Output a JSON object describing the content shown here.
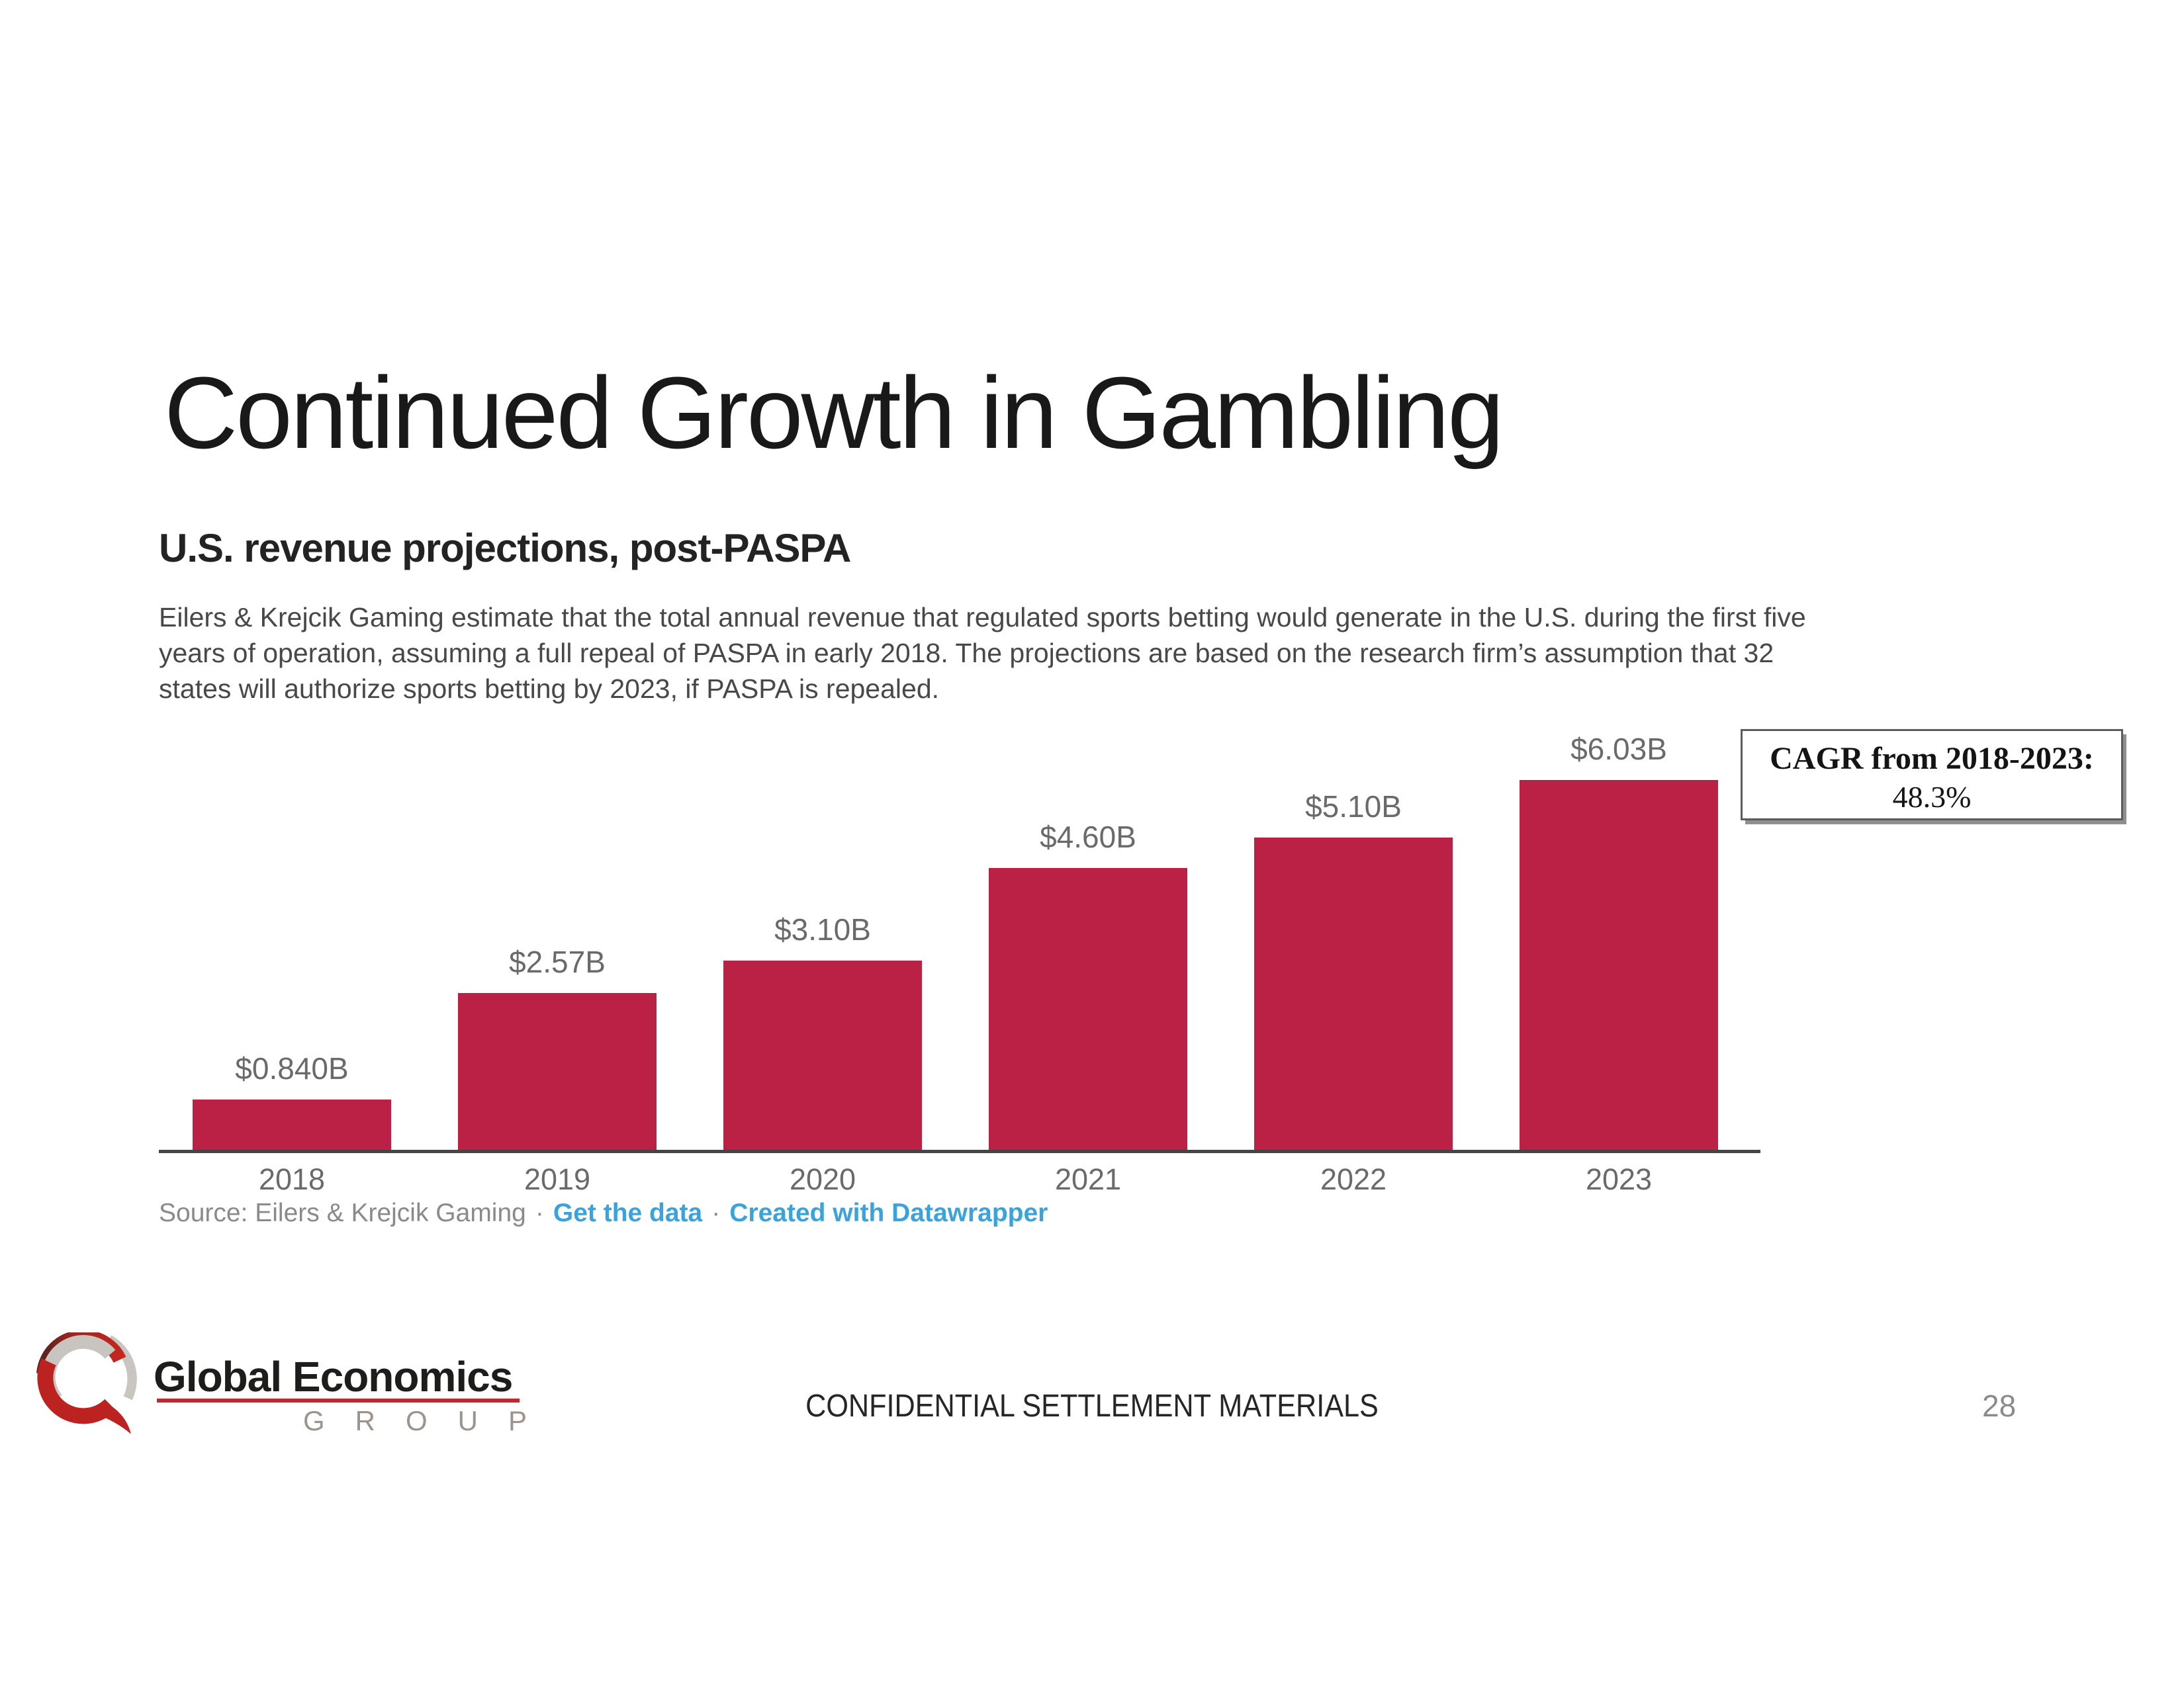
{
  "slide": {
    "title": "Continued Growth in Gambling",
    "footer_center": "CONFIDENTIAL SETTLEMENT MATERIALS",
    "page_number": "28"
  },
  "logo": {
    "name_line": "Global Economics",
    "group_line": "GROUP",
    "accent_red": "#C1272D",
    "swirl_red": "#BC2320",
    "swirl_silver": "#C8C4C0"
  },
  "chart_block": {
    "heading": "U.S. revenue projections, post-PASPA",
    "description": "Eilers & Krejcik Gaming estimate that the total annual revenue that regulated sports betting would generate in the U.S. during the first five years of operation, assuming a full repeal of PASPA in early 2018. The projections are based on the research firm’s assumption that 32 states will authorize sports betting by 2023, if PASPA is repealed.",
    "source_prefix": "Source: Eilers & Krejcik Gaming",
    "separator": "·",
    "link_get_data": "Get the data",
    "link_datawrapper": "Created with Datawrapper",
    "link_color": "#3BA3DB"
  },
  "cagr_box": {
    "line1": "CAGR from 2018-2023:",
    "line2": "48.3%"
  },
  "chart_data": {
    "type": "bar",
    "title": "U.S. revenue projections, post-PASPA",
    "categories": [
      "2018",
      "2019",
      "2020",
      "2021",
      "2022",
      "2023"
    ],
    "values": [
      0.84,
      2.57,
      3.1,
      4.6,
      5.1,
      6.03
    ],
    "labels": [
      "$0.840B",
      "$2.57B",
      "$3.10B",
      "$4.60B",
      "$5.10B",
      "$6.03B"
    ],
    "unit": "billion USD",
    "xlabel": "",
    "ylabel": "",
    "ylim": [
      0,
      6.03
    ],
    "grid": false,
    "legend": false,
    "bar_color": "#BB2145",
    "label_color": "#6a6a6a",
    "axis_color": "#454545"
  }
}
